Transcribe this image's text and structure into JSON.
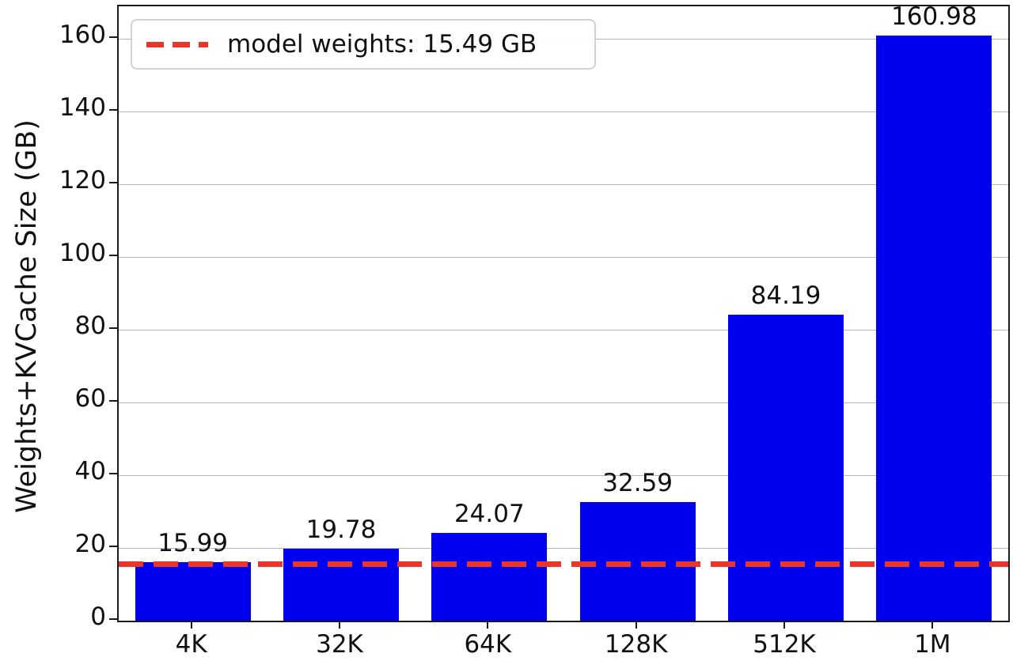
{
  "figure": {
    "ylabel": "Weights+KVCache Size (GB)",
    "legend_label": "model weights: 15.49 GB"
  },
  "chart_data": {
    "type": "bar",
    "title": "",
    "xlabel": "",
    "ylabel": "Weights+KVCache Size (GB)",
    "categories": [
      "4K",
      "32K",
      "64K",
      "128K",
      "512K",
      "1M"
    ],
    "values": [
      15.99,
      19.78,
      24.07,
      32.59,
      84.19,
      160.98
    ],
    "bar_labels": [
      "15.99",
      "19.78",
      "24.07",
      "32.59",
      "84.19",
      "160.98"
    ],
    "ylim": [
      0,
      169
    ],
    "yticks": [
      0,
      20,
      40,
      60,
      80,
      100,
      120,
      140,
      160
    ],
    "grid": true,
    "bar_color": "#0000ee",
    "threshold_line": {
      "y": 15.49,
      "color": "#e9352a",
      "style": "dashed",
      "label": "model weights: 15.49 GB"
    },
    "legend": {
      "position": "upper-left",
      "entries": [
        {
          "label": "model weights: 15.49 GB",
          "marker": "dashed-line",
          "color": "#e9352a"
        }
      ]
    }
  }
}
